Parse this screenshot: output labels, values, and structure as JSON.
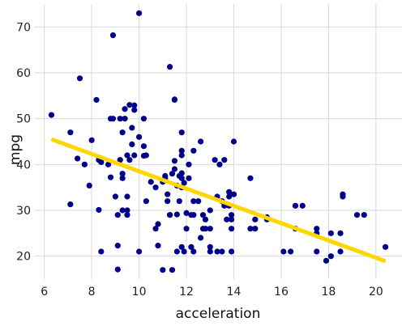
{
  "chart_data": {
    "type": "scatter",
    "title": "",
    "xlabel": "acceleration",
    "ylabel": "mpg",
    "xlim": [
      5.6,
      21.1
    ],
    "ylim": [
      15.0,
      75.0
    ],
    "xticks": [
      6,
      8,
      10,
      12,
      14,
      16,
      18,
      20
    ],
    "yticks": [
      20,
      30,
      40,
      50,
      60,
      70
    ],
    "grid": true,
    "legend": "none",
    "colors": {
      "points": "#00008b",
      "fit_line": "#ffd700",
      "grid": "#d7d7d7",
      "background": "#ffffff"
    },
    "fit_line": {
      "x": [
        6.3,
        20.4
      ],
      "y": [
        45.5,
        18.9
      ]
    },
    "points": [
      [
        6.3,
        50.8
      ],
      [
        7.1,
        47.0
      ],
      [
        7.1,
        31.3
      ],
      [
        7.4,
        41.3
      ],
      [
        7.5,
        58.8
      ],
      [
        7.7,
        40.0
      ],
      [
        7.9,
        35.4
      ],
      [
        8.0,
        45.3
      ],
      [
        8.2,
        54.1
      ],
      [
        8.3,
        41.0
      ],
      [
        8.3,
        30.1
      ],
      [
        8.4,
        40.5
      ],
      [
        8.4,
        21.0
      ],
      [
        8.7,
        40.0
      ],
      [
        8.8,
        37.2
      ],
      [
        8.8,
        50.0
      ],
      [
        8.9,
        68.2
      ],
      [
        8.9,
        50.0
      ],
      [
        9.0,
        33.0
      ],
      [
        9.1,
        29.0
      ],
      [
        9.1,
        22.3
      ],
      [
        9.1,
        17.1
      ],
      [
        9.2,
        41.0
      ],
      [
        9.2,
        50.0
      ],
      [
        9.3,
        38.0
      ],
      [
        9.3,
        47.0
      ],
      [
        9.3,
        37.0
      ],
      [
        9.3,
        30.0
      ],
      [
        9.4,
        52.1
      ],
      [
        9.4,
        50.0
      ],
      [
        9.5,
        42.0
      ],
      [
        9.5,
        33.0
      ],
      [
        9.5,
        29.0
      ],
      [
        9.5,
        30.0
      ],
      [
        9.6,
        41.0
      ],
      [
        9.6,
        53.0
      ],
      [
        9.7,
        44.4
      ],
      [
        9.7,
        48.0
      ],
      [
        9.8,
        52.9
      ],
      [
        9.8,
        51.9
      ],
      [
        9.8,
        42.0
      ],
      [
        10.0,
        46.0
      ],
      [
        10.0,
        73.0
      ],
      [
        10.0,
        21.0
      ],
      [
        10.2,
        50.0
      ],
      [
        10.2,
        44.0
      ],
      [
        10.2,
        41.9
      ],
      [
        10.3,
        42.0
      ],
      [
        10.3,
        32.0
      ],
      [
        10.5,
        36.2
      ],
      [
        10.7,
        35.0
      ],
      [
        10.7,
        26.0
      ],
      [
        10.8,
        27.0
      ],
      [
        10.8,
        22.3
      ],
      [
        11.0,
        36.2
      ],
      [
        11.0,
        17.0
      ],
      [
        11.1,
        37.5
      ],
      [
        11.1,
        37.0
      ],
      [
        11.2,
        33.5
      ],
      [
        11.2,
        32.0
      ],
      [
        11.3,
        61.3
      ],
      [
        11.3,
        29.0
      ],
      [
        11.3,
        29.0
      ],
      [
        11.4,
        38.0
      ],
      [
        11.4,
        17.0
      ],
      [
        11.5,
        40.8
      ],
      [
        11.5,
        54.2
      ],
      [
        11.5,
        54.1
      ],
      [
        11.5,
        39.0
      ],
      [
        11.6,
        35.4
      ],
      [
        11.6,
        29.1
      ],
      [
        11.6,
        21.0
      ],
      [
        11.7,
        32.0
      ],
      [
        11.7,
        37.5
      ],
      [
        11.8,
        47.0
      ],
      [
        11.8,
        43.0
      ],
      [
        11.8,
        42.0
      ],
      [
        11.8,
        38.1
      ],
      [
        11.8,
        37.0
      ],
      [
        11.8,
        35.0
      ],
      [
        11.8,
        22.0
      ],
      [
        11.9,
        36.0
      ],
      [
        11.9,
        21.0
      ],
      [
        12.0,
        26.0
      ],
      [
        12.0,
        29.4
      ],
      [
        12.1,
        40.0
      ],
      [
        12.1,
        37.0
      ],
      [
        12.2,
        29.0
      ],
      [
        12.2,
        22.0
      ],
      [
        12.3,
        43.0
      ],
      [
        12.3,
        32.0
      ],
      [
        12.3,
        29.0
      ],
      [
        12.3,
        21.0
      ],
      [
        12.5,
        32.0
      ],
      [
        12.6,
        45.0
      ],
      [
        12.6,
        24.0
      ],
      [
        12.7,
        29.0
      ],
      [
        12.7,
        26.0
      ],
      [
        12.8,
        28.0
      ],
      [
        12.8,
        26.0
      ],
      [
        13.0,
        30.0
      ],
      [
        13.0,
        22.0
      ],
      [
        13.0,
        26.0
      ],
      [
        13.0,
        21.0
      ],
      [
        13.2,
        41.0
      ],
      [
        13.3,
        33.0
      ],
      [
        13.3,
        21.0
      ],
      [
        13.4,
        40.0
      ],
      [
        13.5,
        32.0
      ],
      [
        13.5,
        21.0
      ],
      [
        13.6,
        41.0
      ],
      [
        13.6,
        31.0
      ],
      [
        13.7,
        28.0
      ],
      [
        13.8,
        34.0
      ],
      [
        13.8,
        33.0
      ],
      [
        13.8,
        31.0
      ],
      [
        13.9,
        26.0
      ],
      [
        13.9,
        28.0
      ],
      [
        13.9,
        29.0
      ],
      [
        13.9,
        21.0
      ],
      [
        14.0,
        45.0
      ],
      [
        14.0,
        33.5
      ],
      [
        14.7,
        37.0
      ],
      [
        14.7,
        26.0
      ],
      [
        14.9,
        26.0
      ],
      [
        14.9,
        28.0
      ],
      [
        15.4,
        28.0
      ],
      [
        15.4,
        28.5
      ],
      [
        16.1,
        21.0
      ],
      [
        16.4,
        21.0
      ],
      [
        16.6,
        26.0
      ],
      [
        16.6,
        31.0
      ],
      [
        16.9,
        31.0
      ],
      [
        17.5,
        26.0
      ],
      [
        17.5,
        21.0
      ],
      [
        17.5,
        25.0
      ],
      [
        17.9,
        19.0
      ],
      [
        18.1,
        20.0
      ],
      [
        18.1,
        25.0
      ],
      [
        18.5,
        25.0
      ],
      [
        18.5,
        21.0
      ],
      [
        18.6,
        33.5
      ],
      [
        18.6,
        33.0
      ],
      [
        19.2,
        29.0
      ],
      [
        19.5,
        29.0
      ],
      [
        20.4,
        22.0
      ]
    ]
  }
}
